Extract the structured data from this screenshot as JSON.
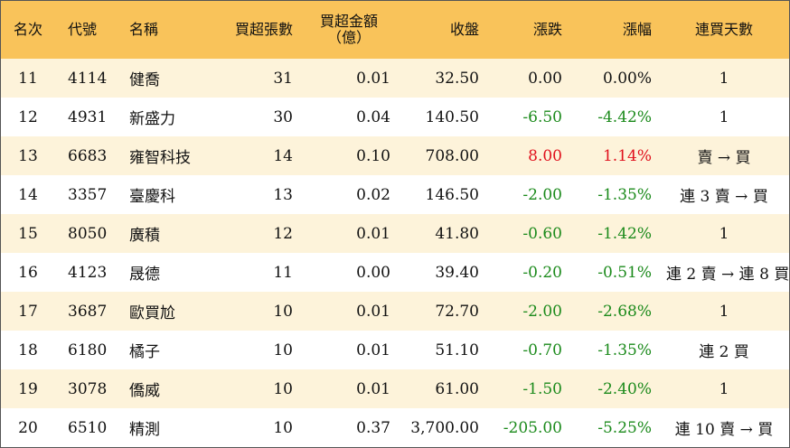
{
  "headers": {
    "rank": "名次",
    "code": "代號",
    "name": "名稱",
    "net_buy_lots": "買超張數",
    "net_buy_amount_line1": "買超金額",
    "net_buy_amount_line2": "（億）",
    "close": "收盤",
    "change": "漲跌",
    "change_pct": "漲幅",
    "consecutive_days": "連買天數"
  },
  "colors": {
    "header_bg": "#f9c35a",
    "stripe_bg": "#fdf3da",
    "up": "#e0101c",
    "down": "#1b8a1b"
  },
  "rows": [
    {
      "rank": "11",
      "code": "4114",
      "name": "健喬",
      "lots": "31",
      "amount": "0.01",
      "close": "32.50",
      "change": "0.00",
      "pct": "0.00%",
      "days": "1",
      "dir": "flat"
    },
    {
      "rank": "12",
      "code": "4931",
      "name": "新盛力",
      "lots": "30",
      "amount": "0.04",
      "close": "140.50",
      "change": "-6.50",
      "pct": "-4.42%",
      "days": "1",
      "dir": "down"
    },
    {
      "rank": "13",
      "code": "6683",
      "name": "雍智科技",
      "lots": "14",
      "amount": "0.10",
      "close": "708.00",
      "change": "8.00",
      "pct": "1.14%",
      "days": "賣 → 買",
      "dir": "up"
    },
    {
      "rank": "14",
      "code": "3357",
      "name": "臺慶科",
      "lots": "13",
      "amount": "0.02",
      "close": "146.50",
      "change": "-2.00",
      "pct": "-1.35%",
      "days": "連 3 賣 → 買",
      "dir": "down"
    },
    {
      "rank": "15",
      "code": "8050",
      "name": "廣積",
      "lots": "12",
      "amount": "0.01",
      "close": "41.80",
      "change": "-0.60",
      "pct": "-1.42%",
      "days": "1",
      "dir": "down"
    },
    {
      "rank": "16",
      "code": "4123",
      "name": "晟德",
      "lots": "11",
      "amount": "0.00",
      "close": "39.40",
      "change": "-0.20",
      "pct": "-0.51%",
      "days": "連 2 賣 → 連 8 買",
      "dir": "down"
    },
    {
      "rank": "17",
      "code": "3687",
      "name": "歐買尬",
      "lots": "10",
      "amount": "0.01",
      "close": "72.70",
      "change": "-2.00",
      "pct": "-2.68%",
      "days": "1",
      "dir": "down"
    },
    {
      "rank": "18",
      "code": "6180",
      "name": "橘子",
      "lots": "10",
      "amount": "0.01",
      "close": "51.10",
      "change": "-0.70",
      "pct": "-1.35%",
      "days": "連 2 買",
      "dir": "down"
    },
    {
      "rank": "19",
      "code": "3078",
      "name": "僑威",
      "lots": "10",
      "amount": "0.01",
      "close": "61.00",
      "change": "-1.50",
      "pct": "-2.40%",
      "days": "1",
      "dir": "down"
    },
    {
      "rank": "20",
      "code": "6510",
      "name": "精測",
      "lots": "10",
      "amount": "0.37",
      "close": "3,700.00",
      "change": "-205.00",
      "pct": "-5.25%",
      "days": "連 10 賣 → 買",
      "dir": "down"
    }
  ]
}
